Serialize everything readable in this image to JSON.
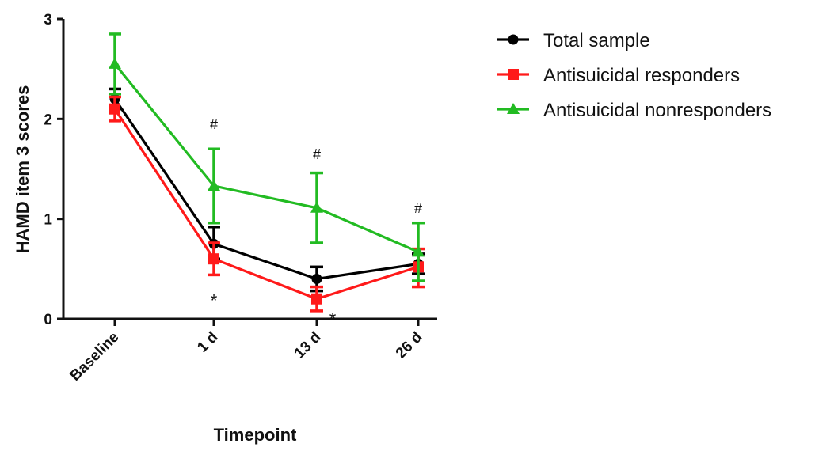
{
  "chart_data": {
    "type": "line",
    "title": "",
    "xlabel": "Timepoint",
    "ylabel": "HAMD item 3 scores",
    "ylim": [
      0,
      3
    ],
    "yticks": [
      "0",
      "1",
      "2",
      "3"
    ],
    "categories": [
      "Baseline",
      "1 d",
      "13 d",
      "26 d"
    ],
    "grid": false,
    "legend_position": "top-right",
    "series": [
      {
        "name": "Total sample",
        "marker": "circle",
        "color": "#000000",
        "values": [
          2.2,
          0.75,
          0.4,
          0.55
        ],
        "error_upper": [
          2.3,
          0.92,
          0.52,
          0.65
        ],
        "error_lower": [
          2.1,
          0.6,
          0.28,
          0.45
        ]
      },
      {
        "name": "Antisuicidal responders",
        "marker": "square",
        "color": "#ff1a1a",
        "values": [
          2.1,
          0.6,
          0.2,
          0.52
        ],
        "error_upper": [
          2.22,
          0.76,
          0.32,
          0.7
        ],
        "error_lower": [
          1.98,
          0.44,
          0.08,
          0.32
        ]
      },
      {
        "name": "Antisuicidal nonresponders",
        "marker": "triangle",
        "color": "#22bb22",
        "values": [
          2.55,
          1.33,
          1.11,
          0.67
        ],
        "error_upper": [
          2.85,
          1.7,
          1.46,
          0.96
        ],
        "error_lower": [
          2.25,
          0.96,
          0.76,
          0.38
        ]
      }
    ],
    "annotations": [
      {
        "text": "#",
        "category": "1 d",
        "y": 1.9,
        "kind": "hash"
      },
      {
        "text": "#",
        "category": "13 d",
        "y": 1.6,
        "kind": "hash"
      },
      {
        "text": "#",
        "category": "26 d",
        "y": 1.06,
        "kind": "hash"
      },
      {
        "text": "*",
        "category": "1 d",
        "y": 0.2,
        "kind": "star"
      },
      {
        "text": "*",
        "category": "13 d",
        "y": 0.02,
        "kind": "star",
        "offset": "right"
      }
    ]
  }
}
